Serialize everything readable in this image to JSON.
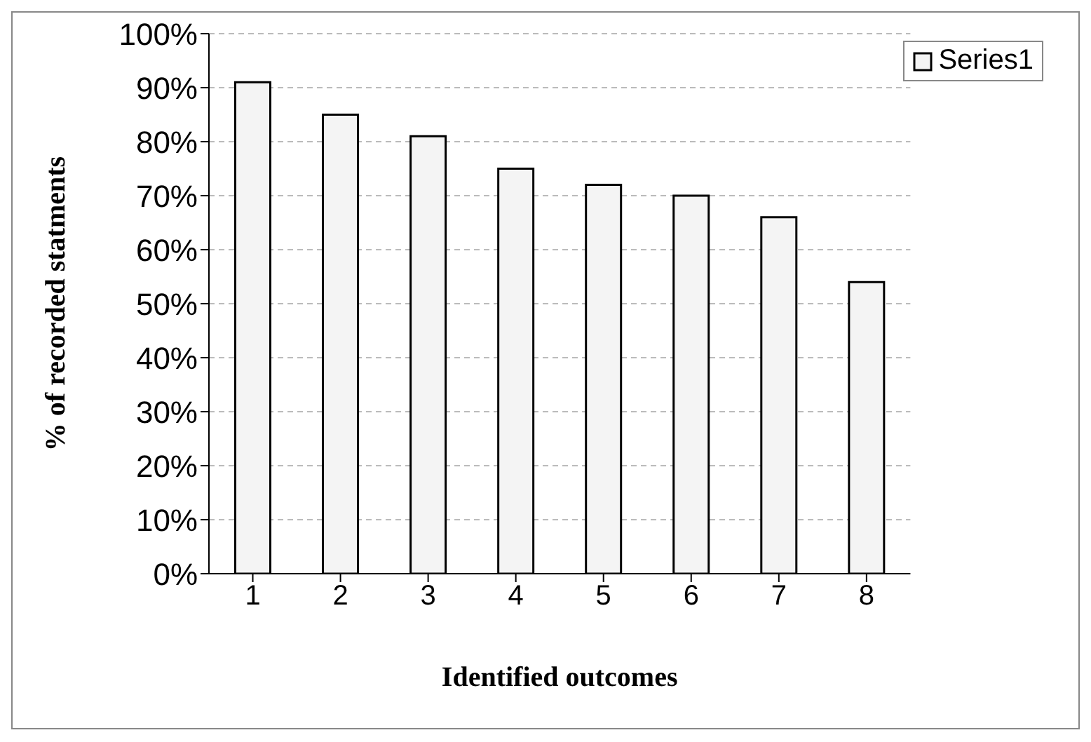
{
  "chart_data": {
    "type": "bar",
    "xlabel": "Identified outcomes",
    "ylabel": "% of recorded statments",
    "categories": [
      "1",
      "2",
      "3",
      "4",
      "5",
      "6",
      "7",
      "8"
    ],
    "series": [
      {
        "name": "Series1",
        "color": "#f4f4f4",
        "values": [
          91,
          85,
          81,
          75,
          72,
          70,
          66,
          54
        ]
      }
    ],
    "ylim": [
      0,
      100
    ],
    "yticks": [
      {
        "value": 0,
        "label": "0%"
      },
      {
        "value": 10,
        "label": "10%"
      },
      {
        "value": 20,
        "label": "20%"
      },
      {
        "value": 30,
        "label": "30%"
      },
      {
        "value": 40,
        "label": "40%"
      },
      {
        "value": 50,
        "label": "50%"
      },
      {
        "value": 60,
        "label": "60%"
      },
      {
        "value": 70,
        "label": "70%"
      },
      {
        "value": 80,
        "label": "80%"
      },
      {
        "value": 90,
        "label": "90%"
      },
      {
        "value": 100,
        "label": "100%"
      }
    ],
    "grid": "y",
    "legend": "top right"
  }
}
